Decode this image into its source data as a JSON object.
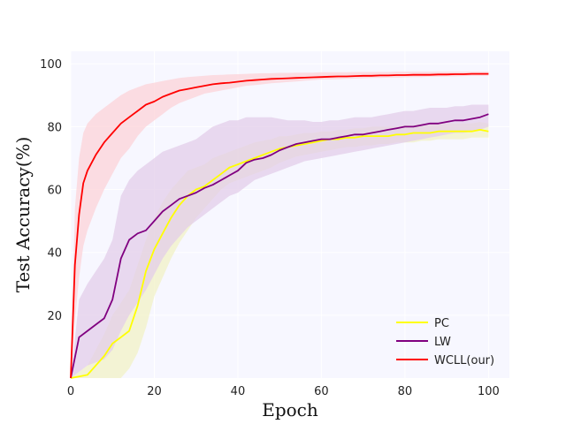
{
  "chart_data": {
    "type": "line",
    "title": "",
    "xlabel": "Epoch",
    "ylabel": "Test Accuracy(%)",
    "xlim": [
      0,
      105
    ],
    "ylim": [
      0,
      104
    ],
    "xticks": [
      0,
      20,
      40,
      60,
      80,
      100
    ],
    "yticks": [
      20,
      40,
      60,
      80,
      100
    ],
    "xtick_labels": [
      "0",
      "20",
      "40",
      "60",
      "80",
      "100"
    ],
    "ytick_labels": [
      "20",
      "40",
      "60",
      "80",
      "100"
    ],
    "grid": true,
    "background": "#f7f7ff",
    "legend_position": "lower-right",
    "series": [
      {
        "name": "PC",
        "color": "#ffff00",
        "band_color": "#f2f2c6",
        "x": [
          0,
          2,
          4,
          6,
          8,
          10,
          12,
          14,
          16,
          18,
          20,
          22,
          24,
          26,
          28,
          30,
          32,
          34,
          36,
          38,
          40,
          42,
          44,
          46,
          48,
          50,
          52,
          54,
          56,
          58,
          60,
          62,
          64,
          66,
          68,
          70,
          72,
          74,
          76,
          78,
          80,
          82,
          84,
          86,
          88,
          90,
          92,
          94,
          96,
          98,
          100
        ],
        "values": [
          0,
          0.5,
          1,
          4,
          7,
          11,
          13,
          15,
          23,
          34,
          41,
          46,
          51,
          55,
          58,
          60,
          61,
          63,
          65,
          67,
          68,
          69,
          70,
          71,
          72,
          73,
          73.5,
          74,
          74.5,
          75,
          75.5,
          76,
          76,
          76.5,
          76.5,
          77,
          77,
          77,
          77,
          77.5,
          77.5,
          78,
          78,
          78,
          78.5,
          78.5,
          78.5,
          78.5,
          78.5,
          79,
          78.5
        ],
        "lower": [
          0,
          0,
          0,
          0,
          0,
          0,
          0,
          3,
          8,
          16,
          26,
          32,
          38,
          43,
          47,
          51,
          54,
          57,
          60,
          62,
          63,
          64,
          65,
          66,
          67,
          68.5,
          69.5,
          70.5,
          71,
          71.5,
          72,
          72.5,
          73,
          73.5,
          73.5,
          74,
          74,
          74.5,
          74.5,
          75,
          75,
          75,
          75.5,
          75.5,
          76,
          76,
          76,
          76,
          76.5,
          76.5,
          76.5
        ],
        "upper": [
          0,
          2,
          4,
          9,
          14,
          20,
          24,
          28,
          36,
          44,
          51,
          56,
          60,
          63,
          66,
          67,
          68,
          70,
          71,
          72,
          73,
          74,
          75,
          75.5,
          76,
          77,
          77,
          77.5,
          78,
          78,
          78.5,
          78.5,
          79,
          79,
          79.5,
          79.5,
          80,
          80,
          80,
          80,
          80.5,
          80.5,
          81,
          81,
          81,
          81,
          81,
          81,
          81,
          81.5,
          81
        ]
      },
      {
        "name": "LW",
        "color": "#800080",
        "band_color": "#e3cdea",
        "x": [
          0,
          2,
          4,
          6,
          8,
          10,
          12,
          14,
          16,
          18,
          20,
          22,
          24,
          26,
          28,
          30,
          32,
          34,
          36,
          38,
          40,
          42,
          44,
          46,
          48,
          50,
          52,
          54,
          56,
          58,
          60,
          62,
          64,
          66,
          68,
          70,
          72,
          74,
          76,
          78,
          80,
          82,
          84,
          86,
          88,
          90,
          92,
          94,
          96,
          98,
          100
        ],
        "values": [
          0,
          13,
          15,
          17,
          19,
          25,
          38,
          44,
          46,
          47,
          50,
          53,
          55,
          57,
          58,
          59,
          60.5,
          61.5,
          63,
          64.5,
          66,
          68.5,
          69.5,
          70,
          71,
          72.5,
          73.5,
          74.5,
          75,
          75.5,
          76,
          76,
          76.5,
          77,
          77.5,
          77.5,
          78,
          78.5,
          79,
          79.5,
          80,
          80,
          80.5,
          81,
          81,
          81.5,
          82,
          82,
          82.5,
          83,
          84
        ],
        "lower": [
          0,
          2,
          4,
          5,
          6,
          9,
          15,
          20,
          24,
          28,
          33,
          38,
          42,
          45,
          48,
          50,
          52,
          54,
          56,
          58,
          59,
          61,
          63,
          64,
          65,
          66,
          67,
          68,
          69,
          69.5,
          70,
          70.5,
          71,
          71.5,
          72,
          72.5,
          73,
          73.5,
          74,
          74.5,
          75,
          75.5,
          76,
          76.5,
          77,
          77.5,
          78,
          78,
          78.5,
          79,
          80
        ],
        "upper": [
          0,
          25,
          30,
          34,
          38,
          44,
          58,
          63,
          66,
          68,
          70,
          72,
          73,
          74,
          75,
          76,
          78,
          80,
          81,
          82,
          82,
          83,
          83,
          83,
          83,
          82.5,
          82,
          82,
          82,
          81.5,
          81.5,
          82,
          82,
          82.5,
          83,
          83,
          83,
          83.5,
          84,
          84.5,
          85,
          85,
          85.5,
          86,
          86,
          86,
          86.5,
          86.5,
          87,
          87,
          87
        ]
      },
      {
        "name": "WCLL(our)",
        "color": "#ff0000",
        "band_color": "#fcd3d8",
        "x": [
          0,
          1,
          2,
          3,
          4,
          6,
          8,
          10,
          12,
          14,
          16,
          18,
          20,
          22,
          24,
          26,
          28,
          30,
          32,
          34,
          36,
          38,
          40,
          42,
          44,
          46,
          48,
          50,
          52,
          54,
          56,
          58,
          60,
          62,
          64,
          66,
          68,
          70,
          72,
          74,
          76,
          78,
          80,
          82,
          84,
          86,
          88,
          90,
          92,
          94,
          96,
          98,
          100
        ],
        "values": [
          0,
          36,
          52,
          62,
          66,
          71,
          75,
          78,
          81,
          83,
          85,
          87,
          88,
          89.5,
          90.5,
          91.5,
          92,
          92.5,
          93,
          93.5,
          93.8,
          94,
          94.3,
          94.6,
          94.8,
          95,
          95.2,
          95.3,
          95.4,
          95.5,
          95.6,
          95.7,
          95.8,
          95.9,
          96,
          96,
          96.1,
          96.2,
          96.2,
          96.3,
          96.3,
          96.4,
          96.4,
          96.5,
          96.5,
          96.5,
          96.6,
          96.6,
          96.7,
          96.7,
          96.8,
          96.8,
          96.8
        ],
        "lower": [
          0,
          18,
          32,
          42,
          47,
          54,
          60,
          65,
          70,
          73,
          77,
          80,
          82,
          84,
          86,
          87.5,
          88.5,
          89.5,
          90.5,
          91,
          91.5,
          92,
          92.5,
          93,
          93.2,
          93.5,
          93.8,
          94,
          94.2,
          94.4,
          94.6,
          94.8,
          95,
          95,
          95.1,
          95.2,
          95.3,
          95.4,
          95.5,
          95.5,
          95.6,
          95.6,
          95.7,
          95.8,
          95.8,
          95.9,
          95.9,
          96,
          96,
          96.1,
          96.2,
          96.2,
          96.2
        ],
        "upper": [
          0,
          54,
          70,
          78,
          81,
          84,
          86,
          88,
          90,
          91.5,
          92.5,
          93.5,
          94,
          94.5,
          95,
          95.5,
          95.8,
          96,
          96.2,
          96.4,
          96.5,
          96.6,
          96.7,
          96.8,
          96.9,
          97,
          97,
          97.1,
          97.1,
          97.2,
          97.2,
          97.2,
          97.3,
          97.3,
          97.3,
          97.3,
          97.4,
          97.4,
          97.4,
          97.4,
          97.4,
          97.5,
          97.5,
          97.5,
          97.5,
          97.5,
          97.5,
          97.5,
          97.5,
          97.5,
          97.5,
          97.5,
          97.5
        ]
      }
    ]
  }
}
